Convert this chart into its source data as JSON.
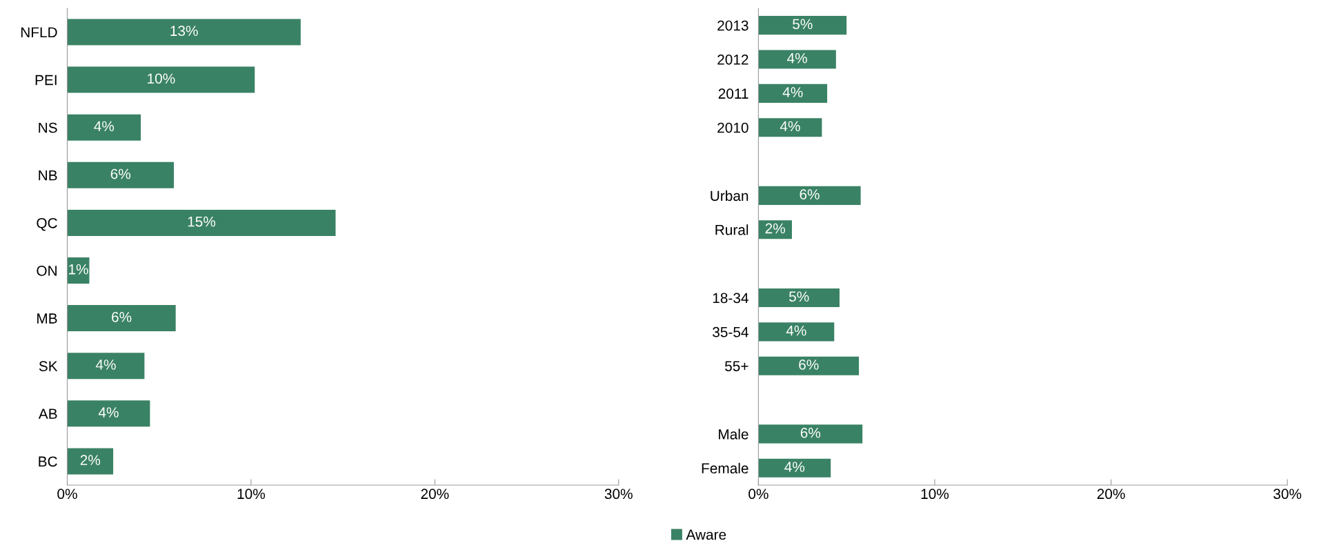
{
  "chart_data": [
    {
      "type": "bar",
      "orientation": "horizontal",
      "categories": [
        "NFLD",
        "PEI",
        "NS",
        "NB",
        "QC",
        "ON",
        "MB",
        "SK",
        "AB",
        "BC"
      ],
      "series": [
        {
          "color": "#3a8265",
          "values": [
            12.7,
            10.2,
            4.0,
            5.8,
            14.6,
            1.2,
            5.9,
            4.2,
            4.5,
            2.5
          ],
          "value_labels": [
            "13%",
            "10%",
            "4%",
            "6%",
            "15%",
            "1%",
            "6%",
            "4%",
            "4%",
            "2%"
          ]
        }
      ],
      "xlim": [
        0,
        30
      ],
      "xticks": [
        {
          "value": 0,
          "label": "0%"
        },
        {
          "value": 10,
          "label": "10%"
        },
        {
          "value": 20,
          "label": "20%"
        },
        {
          "value": 30,
          "label": "30%"
        }
      ],
      "grid": false
    },
    {
      "type": "bar",
      "orientation": "horizontal",
      "categories": [
        "2013",
        "2012",
        "2011",
        "2010",
        null,
        "Urban",
        "Rural",
        null,
        "18-34",
        "35-54",
        "55+",
        null,
        "Male",
        "Female"
      ],
      "series": [
        {
          "name": "Aware",
          "color": "#3a8265",
          "values": [
            5.0,
            4.4,
            3.9,
            3.6,
            null,
            5.8,
            1.9,
            null,
            4.6,
            4.3,
            5.7,
            null,
            5.9,
            4.1
          ],
          "value_labels": [
            "5%",
            "4%",
            "4%",
            "4%",
            null,
            "6%",
            "2%",
            null,
            "5%",
            "4%",
            "6%",
            null,
            "6%",
            "4%"
          ]
        }
      ],
      "xlim": [
        0,
        30
      ],
      "xticks": [
        {
          "value": 0,
          "label": "0%"
        },
        {
          "value": 10,
          "label": "10%"
        },
        {
          "value": 20,
          "label": "20%"
        },
        {
          "value": 30,
          "label": "30%"
        }
      ],
      "grid": false,
      "legend": "bottom"
    }
  ]
}
